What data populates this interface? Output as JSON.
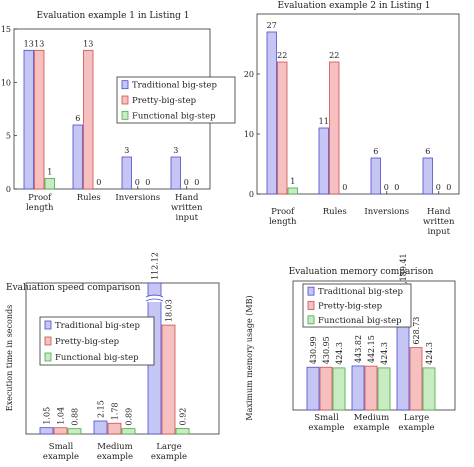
{
  "colors": {
    "traditional": "#c6c6f5",
    "pretty": "#f7c0c0",
    "functional": "#c8ecc2",
    "traditional_stroke": "#4b4bd1",
    "pretty_stroke": "#cf4d4d",
    "functional_stroke": "#47a847"
  },
  "chart_data": [
    {
      "type": "bar",
      "title": "Evaluation example 1 in Listing 1",
      "categories": [
        "Proof length",
        "Rules",
        "Inversions",
        "Hand written input"
      ],
      "category_lines": [
        [
          "Proof",
          "length"
        ],
        [
          "Rules"
        ],
        [
          "Inversions"
        ],
        [
          "Hand",
          "written",
          "input"
        ]
      ],
      "series": [
        {
          "name": "Traditional big-step",
          "values": [
            13,
            6,
            3,
            3
          ]
        },
        {
          "name": "Pretty-big-step",
          "values": [
            13,
            13,
            0,
            0
          ]
        },
        {
          "name": "Functional big-step",
          "values": [
            1,
            0,
            0,
            0
          ]
        }
      ],
      "data_labels": [
        [
          "13",
          "6",
          "3",
          "3"
        ],
        [
          "13",
          "13",
          "0",
          "0"
        ],
        [
          "1",
          "0",
          "0",
          "0"
        ]
      ],
      "ylim": [
        0,
        15
      ],
      "yticks": [
        0,
        5,
        10,
        15
      ],
      "xlabel": "",
      "ylabel": "",
      "legend": "right"
    },
    {
      "type": "bar",
      "title": "Evaluation example 2 in Listing 1",
      "categories": [
        "Proof length",
        "Rules",
        "Inversions",
        "Hand written input"
      ],
      "category_lines": [
        [
          "Proof",
          "length"
        ],
        [
          "Rules"
        ],
        [
          "Inversions"
        ],
        [
          "Hand",
          "written",
          "input"
        ]
      ],
      "series": [
        {
          "name": "Traditional big-step",
          "values": [
            27,
            11,
            6,
            6
          ]
        },
        {
          "name": "Pretty-big-step",
          "values": [
            22,
            22,
            0,
            0
          ]
        },
        {
          "name": "Functional big-step",
          "values": [
            1,
            0,
            0,
            0
          ]
        }
      ],
      "data_labels": [
        [
          "27",
          "11",
          "6",
          "6"
        ],
        [
          "22",
          "22",
          "0",
          "0"
        ],
        [
          "1",
          "0",
          "0",
          "0"
        ]
      ],
      "ylim": [
        0,
        30
      ],
      "yticks": [
        0,
        10,
        20
      ],
      "xlabel": "",
      "ylabel": "",
      "legend": "none"
    },
    {
      "type": "bar",
      "title": "Evaluation speed comparison",
      "categories": [
        "Small example",
        "Medium example",
        "Large example"
      ],
      "category_lines": [
        [
          "Small",
          "example"
        ],
        [
          "Medium",
          "example"
        ],
        [
          "Large",
          "example"
        ]
      ],
      "series": [
        {
          "name": "Traditional big-step",
          "values": [
            1.05,
            2.15,
            112.12
          ]
        },
        {
          "name": "Pretty-big-step",
          "values": [
            1.04,
            1.78,
            18.03
          ]
        },
        {
          "name": "Functional big-step",
          "values": [
            0.88,
            0.89,
            0.92
          ]
        }
      ],
      "data_labels": [
        [
          "1.05",
          "2.15",
          "112.12"
        ],
        [
          "1.04",
          "1.78",
          "18.03"
        ],
        [
          "0.88",
          "0.89",
          "0.92"
        ]
      ],
      "ylim": [
        0,
        25
      ],
      "yticks": [],
      "axis_break": true,
      "xlabel": "",
      "ylabel": "Execution time in seconds",
      "legend": "top-left"
    },
    {
      "type": "bar",
      "title": "Evaluation memory comparison",
      "categories": [
        "Small example",
        "Medium example",
        "Large example"
      ],
      "category_lines": [
        [
          "Small",
          "example"
        ],
        [
          "Medium",
          "example"
        ],
        [
          "Large",
          "example"
        ]
      ],
      "series": [
        {
          "name": "Traditional big-step",
          "values": [
            430.99,
            443.82,
            1189.41
          ]
        },
        {
          "name": "Pretty-big-step",
          "values": [
            430.95,
            442.15,
            628.73
          ]
        },
        {
          "name": "Functional big-step",
          "values": [
            424.3,
            424.3,
            424.3
          ]
        }
      ],
      "data_labels": [
        [
          "430.99",
          "443.82",
          "1,189.41"
        ],
        [
          "430.95",
          "442.15",
          "628.73"
        ],
        [
          "424.3",
          "424.3",
          "424.3"
        ]
      ],
      "ylim": [
        0,
        1300
      ],
      "yticks": [],
      "xlabel": "",
      "ylabel": "Maximum memory usage (MB)",
      "legend": "top-left"
    }
  ]
}
